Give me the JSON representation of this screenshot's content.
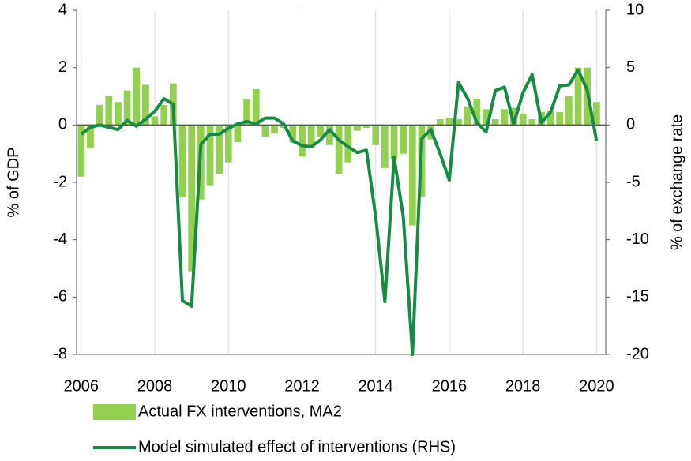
{
  "chart_data": {
    "type": "bar_line",
    "y_label": "% of GDP",
    "y2_label": "% of exchange rate",
    "xlim": [
      2005.875,
      2020.25
    ],
    "xticks": [
      2006,
      2008,
      2010,
      2012,
      2014,
      2016,
      2018,
      2020
    ],
    "ylim": [
      -8,
      4
    ],
    "yticks": [
      -8,
      -6,
      -4,
      -2,
      0,
      2,
      4
    ],
    "y2lim": [
      -20,
      10
    ],
    "y2ticks": [
      -20,
      -15,
      -10,
      -5,
      0,
      5,
      10
    ],
    "x": [
      2006,
      2006.25,
      2006.5,
      2006.75,
      2007,
      2007.25,
      2007.5,
      2007.75,
      2008,
      2008.25,
      2008.5,
      2008.75,
      2009,
      2009.25,
      2009.5,
      2009.75,
      2010,
      2010.25,
      2010.5,
      2010.75,
      2011,
      2011.25,
      2011.5,
      2011.75,
      2012,
      2012.25,
      2012.5,
      2012.75,
      2013,
      2013.25,
      2013.5,
      2013.75,
      2014,
      2014.25,
      2014.5,
      2014.75,
      2015,
      2015.25,
      2015.5,
      2015.75,
      2016,
      2016.25,
      2016.5,
      2016.75,
      2017,
      2017.25,
      2017.5,
      2017.75,
      2018,
      2018.25,
      2018.5,
      2018.75,
      2019,
      2019.25,
      2019.5,
      2019.75,
      2020
    ],
    "series": [
      {
        "name": "Actual FX interventions, MA2",
        "type": "bar",
        "color": "#92d050",
        "values": [
          -1.8,
          -0.8,
          0.7,
          1.0,
          0.8,
          1.2,
          2.0,
          1.4,
          0.3,
          0.7,
          1.45,
          -2.5,
          -5.1,
          -2.6,
          -2.1,
          -1.7,
          -1.3,
          -0.6,
          0.9,
          1.25,
          -0.4,
          -0.3,
          -0.1,
          -0.6,
          -1.1,
          -0.8,
          -0.4,
          -0.7,
          -1.7,
          -1.3,
          -0.2,
          -0.1,
          -0.7,
          -1.5,
          -1.2,
          -1.0,
          -3.5,
          -2.5,
          -0.5,
          0.2,
          0.25,
          0.2,
          0.65,
          0.9,
          0.55,
          0.2,
          0.55,
          0.6,
          0.4,
          0.2,
          0.45,
          0.5,
          0.45,
          1.0,
          2.0,
          2.0,
          0.8
        ]
      },
      {
        "name": "Model simulated effect of interventions (RHS)",
        "type": "line",
        "axis": "y2",
        "color": "#168b45",
        "values": [
          -0.8,
          -0.2,
          0,
          -0.2,
          -0.4,
          0.4,
          -0.1,
          0.5,
          1.2,
          2.3,
          1.8,
          -15.3,
          -15.8,
          -1.7,
          -0.8,
          -0.8,
          -0.3,
          0.1,
          0.3,
          0.1,
          0.6,
          0.6,
          0.1,
          -1.4,
          -1.8,
          -1.9,
          -1.3,
          -0.4,
          -1.3,
          -1.9,
          -2.4,
          -2.2,
          -8,
          -15.4,
          -2.8,
          -8,
          -20,
          -1.2,
          -0.4,
          -2.5,
          -4.8,
          3.7,
          2.3,
          0.2,
          -0.6,
          3.0,
          3.3,
          0.1,
          2.8,
          4.4,
          0.2,
          1.1,
          3.4,
          3.5,
          4.8,
          3.0,
          -1.4
        ]
      }
    ]
  }
}
